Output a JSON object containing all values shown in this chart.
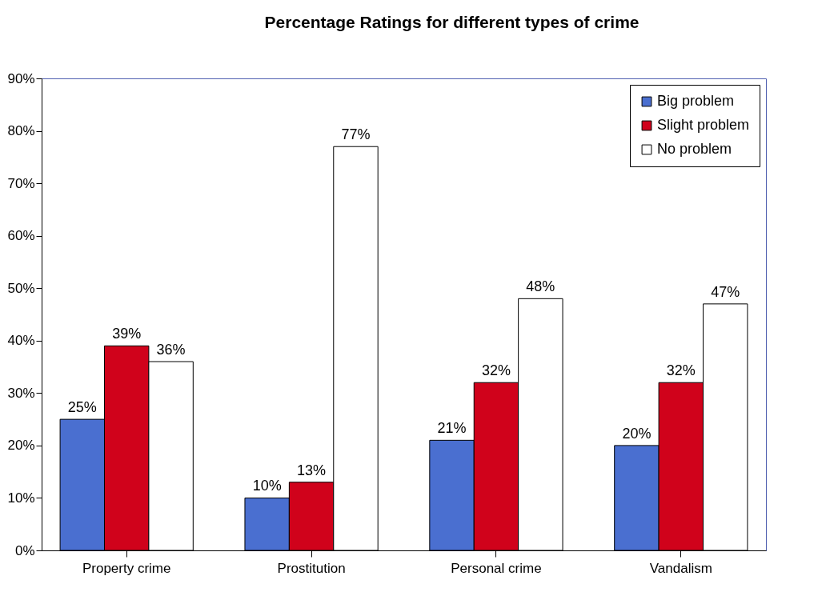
{
  "chart_data": {
    "type": "bar",
    "title": "Percentage Ratings for different types of crime",
    "categories": [
      "Property crime",
      "Prostitution",
      "Personal crime",
      "Vandalism"
    ],
    "series": [
      {
        "name": "Big problem",
        "color": "#4a6fd0",
        "values": [
          25,
          10,
          21,
          20
        ],
        "value_labels": [
          "25%",
          "10%",
          "21%",
          "20%"
        ]
      },
      {
        "name": "Slight problem",
        "color": "#d0021b",
        "values": [
          39,
          13,
          32,
          32
        ],
        "value_labels": [
          "39%",
          "13%",
          "32%",
          "32%"
        ]
      },
      {
        "name": "No problem",
        "color": "#ffffff",
        "values": [
          36,
          77,
          48,
          47
        ],
        "value_labels": [
          "36%",
          "77%",
          "48%",
          "47%"
        ]
      }
    ],
    "ylim": [
      0,
      90
    ],
    "yticks": [
      {
        "value": 0,
        "label": "0%"
      },
      {
        "value": 10,
        "label": "10%"
      },
      {
        "value": 20,
        "label": "20%"
      },
      {
        "value": 30,
        "label": "30%"
      },
      {
        "value": 40,
        "label": "40%"
      },
      {
        "value": 50,
        "label": "50%"
      },
      {
        "value": 60,
        "label": "60%"
      },
      {
        "value": 70,
        "label": "70%"
      },
      {
        "value": 80,
        "label": "80%"
      },
      {
        "value": 90,
        "label": "90%"
      }
    ],
    "grid": false,
    "legend": "top right"
  }
}
